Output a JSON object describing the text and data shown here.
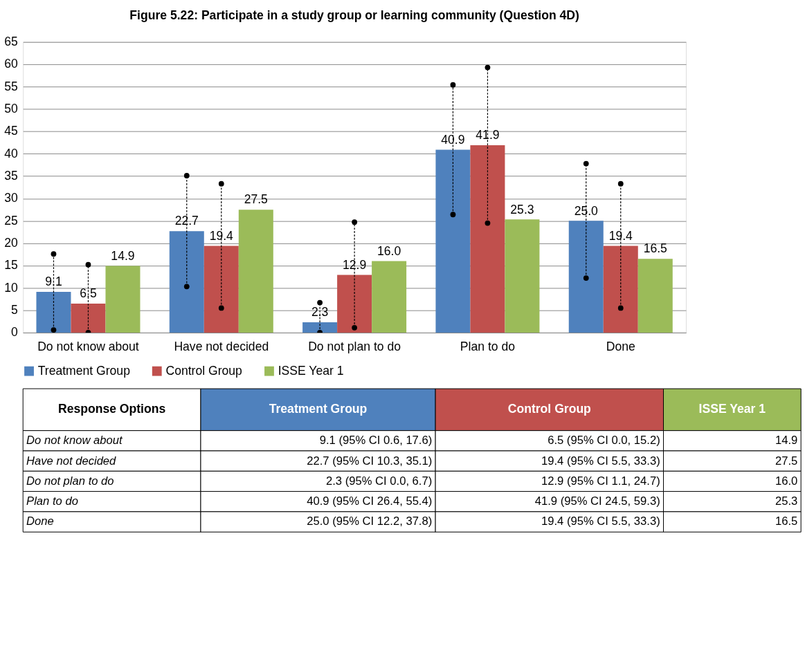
{
  "chart_data": {
    "type": "bar",
    "title": "Figure 5.22: Participate in a study group or learning community (Question 4D)",
    "categories": [
      "Do not know about",
      "Have not decided",
      "Do not plan to do",
      "Plan to do",
      "Done"
    ],
    "series": [
      {
        "name": "Treatment Group",
        "color": "#4f81bd",
        "values": [
          9.1,
          22.7,
          2.3,
          40.9,
          25.0
        ],
        "value_labels": [
          "9.1",
          "22.7",
          "2.3",
          "40.9",
          "25.0"
        ],
        "errors": [
          [
            0.6,
            17.6
          ],
          [
            10.3,
            35.1
          ],
          [
            0.0,
            6.7
          ],
          [
            26.4,
            55.4
          ],
          [
            12.2,
            37.8
          ]
        ]
      },
      {
        "name": "Control Group",
        "color": "#c0504d",
        "values": [
          6.5,
          19.4,
          12.9,
          41.9,
          19.4
        ],
        "value_labels": [
          "6.5",
          "19.4",
          "12.9",
          "41.9",
          "19.4"
        ],
        "errors": [
          [
            0.0,
            15.2
          ],
          [
            5.5,
            33.3
          ],
          [
            1.1,
            24.7
          ],
          [
            24.5,
            59.3
          ],
          [
            5.5,
            33.3
          ]
        ]
      },
      {
        "name": "ISSE Year 1",
        "color": "#9bbb59",
        "values": [
          14.9,
          27.5,
          16.0,
          25.3,
          16.5
        ],
        "value_labels": [
          "14.9",
          "27.5",
          "16.0",
          "25.3",
          "16.5"
        ]
      }
    ],
    "ylim": [
      0,
      65
    ],
    "yticks": [
      0,
      5,
      10,
      15,
      20,
      25,
      30,
      35,
      40,
      45,
      50,
      55,
      60,
      65
    ],
    "grid": "y",
    "legend": "bottom",
    "annotations": [
      "Response Options",
      "9.1 (95% CI 0.6, 17.6)",
      "6.5 (95% CI 0.0, 15.2)",
      "22.7 (95% CI 10.3, 35.1)",
      "19.4 (95% CI 5.5, 33.3)",
      "2.3 (95% CI 0.0, 6.7)",
      "12.9 (95% CI 1.1, 24.7)",
      "40.9 (95% CI 26.4, 55.4)",
      "41.9 (95% CI 24.5, 59.3)",
      "25.0 (95% CI 12.2, 37.8)",
      "19.4 (95% CI 5.5, 33.3)"
    ]
  }
}
